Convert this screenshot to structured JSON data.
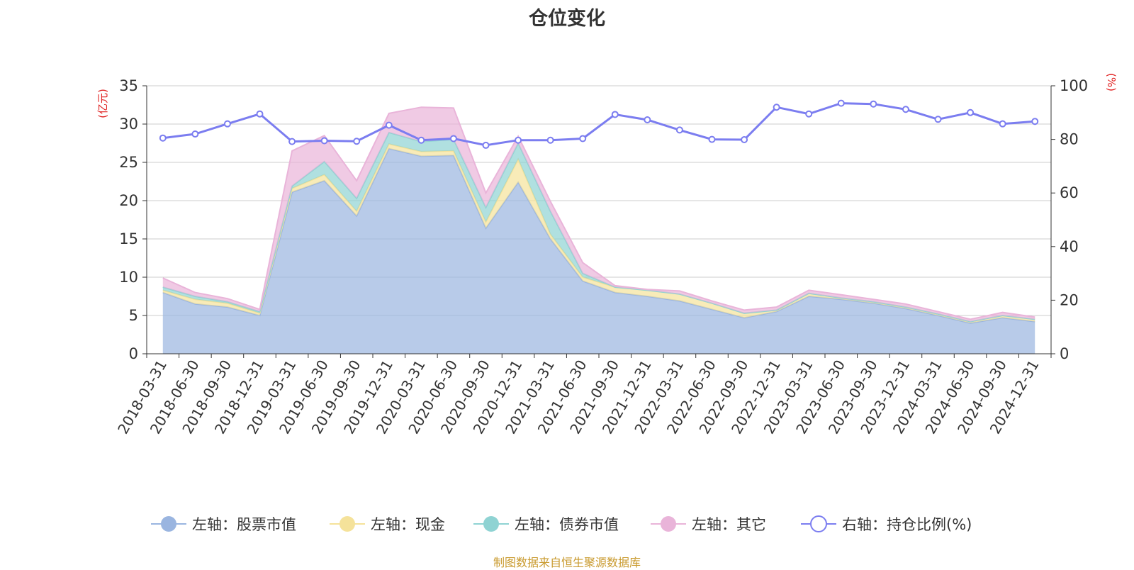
{
  "chart_data": {
    "type": "area",
    "title": "仓位变化",
    "x": [
      "2018-03-31",
      "2018-06-30",
      "2018-09-30",
      "2018-12-31",
      "2019-03-31",
      "2019-06-30",
      "2019-09-30",
      "2019-12-31",
      "2020-03-31",
      "2020-06-30",
      "2020-09-30",
      "2020-12-31",
      "2021-03-31",
      "2021-06-30",
      "2021-09-30",
      "2021-12-31",
      "2022-03-31",
      "2022-06-30",
      "2022-09-30",
      "2022-12-31",
      "2023-03-31",
      "2023-06-30",
      "2023-09-30",
      "2023-12-31",
      "2024-03-31",
      "2024-06-30",
      "2024-09-30",
      "2024-12-31"
    ],
    "series": [
      {
        "name": "左轴：股票市值",
        "axis": "left",
        "stack": true,
        "color": "#9ab5e0",
        "values": [
          8.0,
          6.5,
          6.1,
          5.0,
          21.1,
          22.6,
          18.0,
          26.8,
          25.8,
          25.9,
          16.4,
          22.4,
          15.0,
          9.5,
          8.0,
          7.5,
          6.9,
          5.8,
          4.7,
          5.5,
          7.5,
          7.1,
          6.6,
          5.9,
          5.0,
          4.0,
          4.7,
          4.2
        ]
      },
      {
        "name": "左轴：现金",
        "axis": "left",
        "stack": true,
        "color": "#f5e29a",
        "values": [
          0.3,
          0.6,
          0.5,
          0.3,
          0.5,
          0.8,
          0.6,
          0.6,
          0.6,
          0.6,
          0.8,
          3.0,
          0.6,
          0.5,
          0.7,
          0.8,
          0.9,
          0.8,
          0.6,
          0.2,
          0.4,
          0.2,
          0.2,
          0.2,
          0.2,
          0.2,
          0.3,
          0.3
        ]
      },
      {
        "name": "左轴：债券市值",
        "axis": "left",
        "stack": true,
        "color": "#8fd3d3",
        "values": [
          0.4,
          0.4,
          0.2,
          0.2,
          0.3,
          1.7,
          1.7,
          1.5,
          1.3,
          1.5,
          1.9,
          2.1,
          3.0,
          0.5,
          0.0,
          0.0,
          0.0,
          0.0,
          0.0,
          0.0,
          0.0,
          0.0,
          0.0,
          0.0,
          0.0,
          0.0,
          0.0,
          0.0
        ]
      },
      {
        "name": "左轴：其它",
        "axis": "left",
        "stack": true,
        "color": "#e9b4d9",
        "values": [
          1.2,
          0.5,
          0.4,
          0.3,
          4.6,
          3.4,
          2.3,
          2.5,
          4.5,
          4.1,
          1.9,
          0.9,
          1.3,
          1.4,
          0.2,
          0.1,
          0.4,
          0.3,
          0.4,
          0.4,
          0.4,
          0.4,
          0.3,
          0.4,
          0.3,
          0.3,
          0.4,
          0.3
        ]
      },
      {
        "name": "右轴：持仓比例(%)",
        "axis": "right",
        "type": "line",
        "color": "#7b7df0",
        "values": [
          80.5,
          82.0,
          85.8,
          89.5,
          79.2,
          79.5,
          79.3,
          85.3,
          79.7,
          80.3,
          77.8,
          79.7,
          79.7,
          80.3,
          89.3,
          87.3,
          83.5,
          80.0,
          79.9,
          92.0,
          89.5,
          93.5,
          93.2,
          91.2,
          87.5,
          90.0,
          85.8,
          86.7
        ]
      }
    ],
    "left_axis": {
      "unit": "(亿元)",
      "min": 0,
      "max": 35,
      "ticks": [
        "0",
        "5",
        "10",
        "15",
        "20",
        "25",
        "30",
        "35"
      ]
    },
    "right_axis": {
      "unit": "(%)",
      "min": 0,
      "max": 100,
      "ticks": [
        "0",
        "20",
        "40",
        "60",
        "80",
        "100"
      ]
    },
    "grid": true,
    "legend_position": "bottom-center"
  },
  "footer": {
    "source": "制图数据来自恒生聚源数据库"
  }
}
